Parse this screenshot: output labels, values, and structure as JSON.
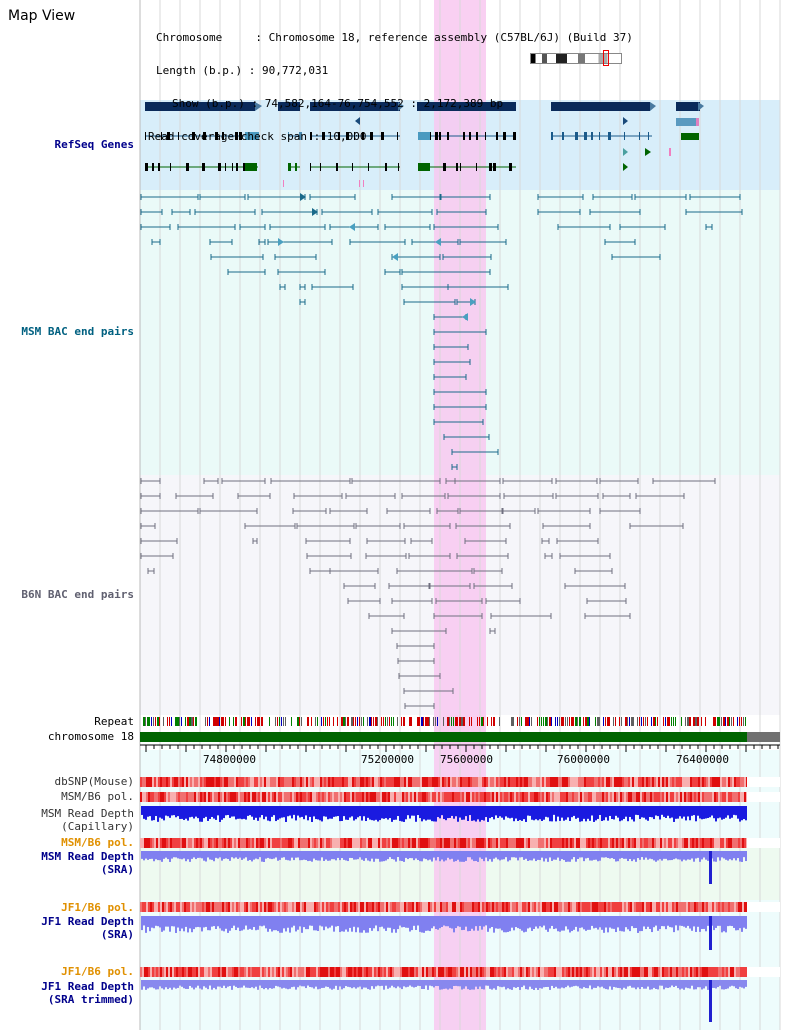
{
  "title": "Map View",
  "info": {
    "chromosome": "Chromosome     : Chromosome 18, reference assembly (C57BL/6J) (Build 37)",
    "length": "Length (b.p.) : 90,772,031",
    "show": "Show (b.p.) : 74,582,164-76,754,552 : 2,172,389 bp",
    "read_cov": "Read coverage check span : 10,000"
  },
  "tracks": {
    "refseq": "RefSeq Genes",
    "msm_bac": "MSM BAC end pairs",
    "b6n_bac": "B6N BAC end pairs",
    "repeat": "Repeat",
    "chromosome": "chromosome 18",
    "dbsnp": "dbSNP(Mouse)",
    "msm_b6_pol": "MSM/B6 pol.",
    "msm_rd_cap_1": "MSM Read Depth",
    "msm_rd_cap_2": "(Capillary)",
    "msm_b6_pol2": "MSM/B6 pol.",
    "msm_rd_sra_1": "MSM Read Depth",
    "msm_rd_sra_2": "(SRA)",
    "jf1_b6_pol": "JF1/B6 pol.",
    "jf1_rd_sra_1": "JF1 Read Depth",
    "jf1_rd_sra_2": "(SRA)",
    "jf1_b6_pol2": "JF1/B6 pol.",
    "jf1_rd_trim_1": "JF1 Read Depth",
    "jf1_rd_trim_2": "(SRA trimmed)"
  },
  "axis": {
    "ticks": [
      "74800000",
      "75200000",
      "75600000",
      "76000000",
      "76400000"
    ]
  },
  "colors": {
    "refseq_label": "#00008b",
    "msm_label": "#006080",
    "b6n_label": "#606070",
    "orange_label": "#e09000",
    "navy_label": "#00008b",
    "highlight": "#f8c8f0",
    "chrom_bar": "#006400"
  }
}
